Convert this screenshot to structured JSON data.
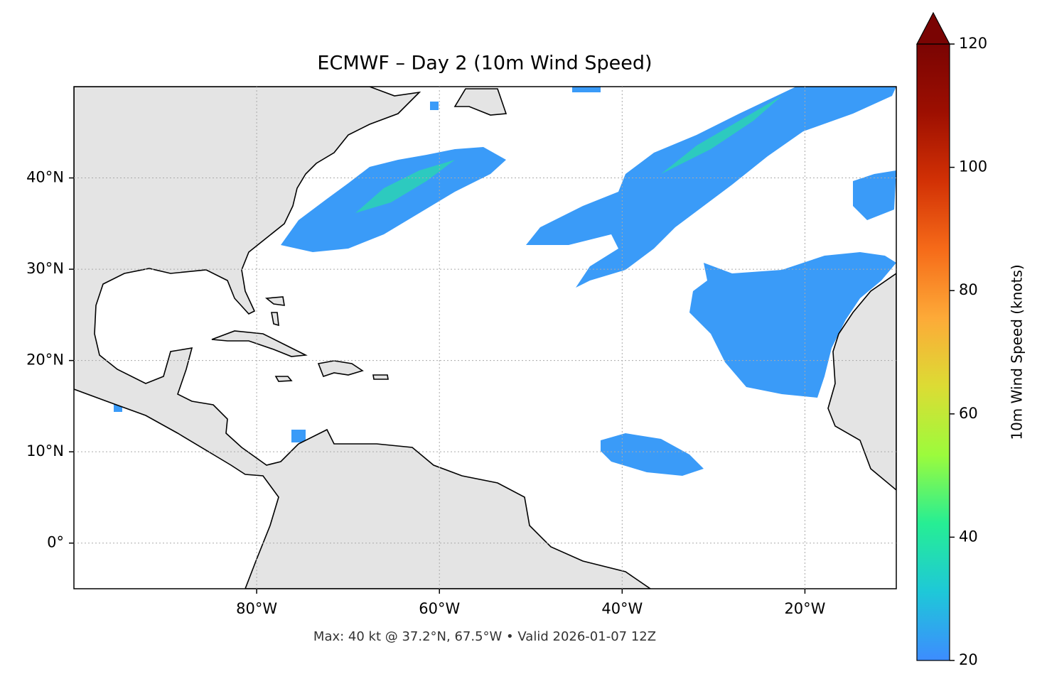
{
  "chart_data": {
    "type": "map",
    "title": "ECMWF – Day 2 (10m Wind Speed)",
    "caption": "Max: 40 kt @ 37.2°N, 67.5°W • Valid 2026-01-07 12Z",
    "xlim": [
      -100,
      -10
    ],
    "ylim": [
      -5,
      50
    ],
    "xticks": [
      {
        "value": -80,
        "label": "80°W"
      },
      {
        "value": -60,
        "label": "60°W"
      },
      {
        "value": -40,
        "label": "40°W"
      },
      {
        "value": -20,
        "label": "20°W"
      }
    ],
    "yticks": [
      {
        "value": 0,
        "label": "0°"
      },
      {
        "value": 10,
        "label": "10°N"
      },
      {
        "value": 20,
        "label": "20°N"
      },
      {
        "value": 30,
        "label": "30°N"
      },
      {
        "value": 40,
        "label": "40°N"
      }
    ],
    "grid": true,
    "colorbar": {
      "label": "10m Wind Speed (knots)",
      "lim": [
        20,
        120
      ],
      "ticks": [
        20,
        40,
        60,
        80,
        100,
        120
      ],
      "extend": "max",
      "colors": [
        "#3d8cff",
        "#1ec8d8",
        "#26ee94",
        "#9cfb3c",
        "#dcdc34",
        "#fdaa38",
        "#f66b19",
        "#d23105",
        "#9d0f01",
        "#7a0403"
      ]
    }
  }
}
